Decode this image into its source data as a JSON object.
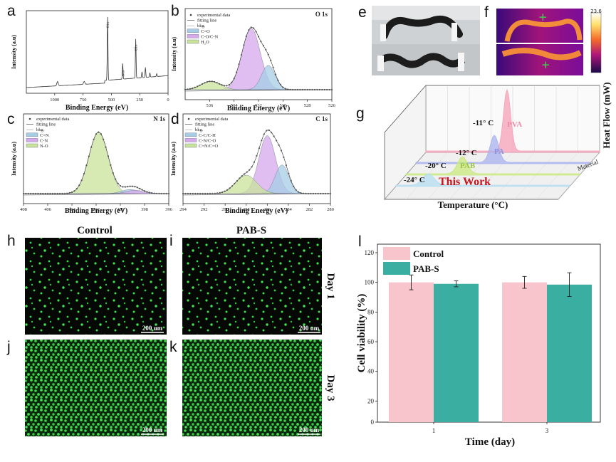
{
  "panel_labels": {
    "a": "a",
    "b": "b",
    "c": "c",
    "d": "d",
    "e": "e",
    "f": "f",
    "g": "g",
    "h": "h",
    "i": "i",
    "j": "j",
    "k": "k",
    "l": "l"
  },
  "xps_common": {
    "ylabel": "Intensity (a.u)",
    "xlabel": "Binding Energy (eV)"
  },
  "panel_a": {
    "xlim": [
      1250,
      0
    ],
    "ticks": [
      {
        "v": 1000,
        "t": "1000"
      },
      {
        "v": 750,
        "t": "750"
      },
      {
        "v": 500,
        "t": "500"
      },
      {
        "v": 250,
        "t": "250"
      },
      {
        "v": 0,
        "t": "0"
      }
    ],
    "peak_labels": [
      {
        "x": 533,
        "t": "O1s"
      },
      {
        "x": 400,
        "t": "N1s"
      },
      {
        "x": 285,
        "t": "C1s"
      }
    ]
  },
  "panel_b": {
    "title": "O 1s",
    "xlim": [
      538,
      526
    ],
    "ticks": [
      {
        "v": 536,
        "t": "536"
      },
      {
        "v": 534,
        "t": "534"
      },
      {
        "v": 532,
        "t": "532"
      },
      {
        "v": 530,
        "t": "530"
      },
      {
        "v": 528,
        "t": "528"
      },
      {
        "v": 526,
        "t": "526"
      }
    ],
    "legend": [
      "experimental data",
      "fitting line",
      "bkg.",
      "C=O",
      "C-O/C-N",
      "H₂O"
    ],
    "components": [
      {
        "c": 532.6,
        "w": 0.75,
        "a": 0.88,
        "color": "#d6a8ec"
      },
      {
        "c": 531.2,
        "w": 0.55,
        "a": 0.35,
        "color": "#a6cde6"
      },
      {
        "c": 535.9,
        "w": 0.8,
        "a": 0.12,
        "color": "#c9e39b"
      }
    ]
  },
  "panel_c": {
    "title": "N 1s",
    "xlim": [
      408,
      396
    ],
    "ticks": [
      {
        "v": 408,
        "t": "408"
      },
      {
        "v": 406,
        "t": "406"
      },
      {
        "v": 404,
        "t": "404"
      },
      {
        "v": 402,
        "t": "402"
      },
      {
        "v": 400,
        "t": "400"
      },
      {
        "v": 398,
        "t": "398"
      },
      {
        "v": 396,
        "t": "396"
      }
    ],
    "legend": [
      "experimental data",
      "fitting line",
      "bkg.",
      "C=N",
      "C-N",
      "N-O"
    ],
    "components": [
      {
        "c": 401.8,
        "w": 0.8,
        "a": 0.9,
        "color": "#c9e39b"
      },
      {
        "c": 399.2,
        "w": 0.7,
        "a": 0.06,
        "color": "#a6cde6"
      },
      {
        "c": 398.8,
        "w": 0.7,
        "a": 0.05,
        "color": "#d6a8ec"
      }
    ]
  },
  "panel_d": {
    "title": "C 1s",
    "xlim": [
      294,
      280
    ],
    "ticks": [
      {
        "v": 294,
        "t": "294"
      },
      {
        "v": 292,
        "t": "292"
      },
      {
        "v": 290,
        "t": "290"
      },
      {
        "v": 288,
        "t": "288"
      },
      {
        "v": 286,
        "t": "286"
      },
      {
        "v": 284,
        "t": "284"
      },
      {
        "v": 282,
        "t": "282"
      },
      {
        "v": 280,
        "t": "280"
      }
    ],
    "legend": [
      "experimental data",
      "fitting line",
      "bkg.",
      "C-C/C-H",
      "C-N/C-O",
      "C=N/C=O"
    ],
    "components": [
      {
        "c": 286.0,
        "w": 0.8,
        "a": 0.85,
        "color": "#d6a8ec"
      },
      {
        "c": 284.6,
        "w": 0.65,
        "a": 0.42,
        "color": "#a6cde6"
      },
      {
        "c": 288.0,
        "w": 1.0,
        "a": 0.27,
        "color": "#c9e39b"
      }
    ]
  },
  "panel_f": {
    "scale_max": "23.6"
  },
  "panel_g": {
    "zlabel": "Heat Flow (mW)",
    "xlabel": "Temperature (°C)",
    "depth_label": "Material",
    "series": [
      {
        "name": "PVA",
        "temp_label": "-11° C",
        "color": "#f5a0b8"
      },
      {
        "name": "PA",
        "temp_label": "-12° C",
        "color": "#a9b2ef"
      },
      {
        "name": "PAB",
        "temp_label": "-20° C",
        "color": "#c9ea7d"
      },
      {
        "name": "This Work",
        "temp_label": "-24° C",
        "color": "#b5def0"
      }
    ]
  },
  "microscopy": {
    "col_headers": [
      "Control",
      "PAB-S"
    ],
    "row_labels": [
      "Day 1",
      "Day 3"
    ],
    "scale_bar": "200 um"
  },
  "chart_data": {
    "type": "bar",
    "title": "",
    "xlabel": "Time (day)",
    "ylabel": "Cell viability (%)",
    "categories": [
      "1",
      "3"
    ],
    "ylim": [
      0,
      120
    ],
    "yticks": [
      0,
      20,
      40,
      60,
      80,
      100,
      120
    ],
    "series": [
      {
        "name": "Control",
        "color": "#f9c5cc",
        "values": [
          100,
          100
        ],
        "errors": [
          5,
          4
        ]
      },
      {
        "name": "PAB-S",
        "color": "#3aaea0",
        "values": [
          99,
          98.5
        ],
        "errors": [
          2,
          8
        ]
      }
    ]
  }
}
